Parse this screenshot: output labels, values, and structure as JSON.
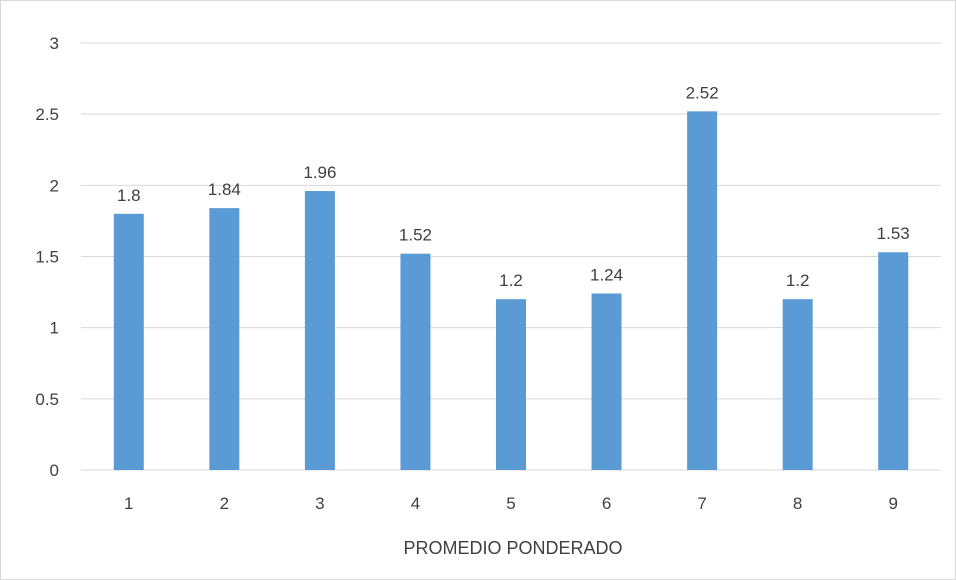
{
  "chart_data": {
    "type": "bar",
    "categories": [
      "1",
      "2",
      "3",
      "4",
      "5",
      "6",
      "7",
      "8",
      "9"
    ],
    "values": [
      1.8,
      1.84,
      1.96,
      1.52,
      1.2,
      1.24,
      2.52,
      1.2,
      1.53
    ],
    "data_labels": [
      "1.8",
      "1.84",
      "1.96",
      "1.52",
      "1.2",
      "1.24",
      "2.52",
      "1.2",
      "1.53"
    ],
    "xlabel": "PROMEDIO PONDERADO",
    "ylabel": "",
    "ylim": [
      0,
      3
    ],
    "yticks": [
      0,
      0.5,
      1,
      1.5,
      2,
      2.5,
      3
    ],
    "ytick_labels": [
      "0",
      "0.5",
      "1",
      "1.5",
      "2",
      "2.5",
      "3"
    ],
    "grid": true,
    "legend": "none",
    "colors": {
      "bar": "#5b9bd5",
      "grid": "#d9d9d9",
      "axis": "#d9d9d9",
      "text": "#404040"
    }
  }
}
